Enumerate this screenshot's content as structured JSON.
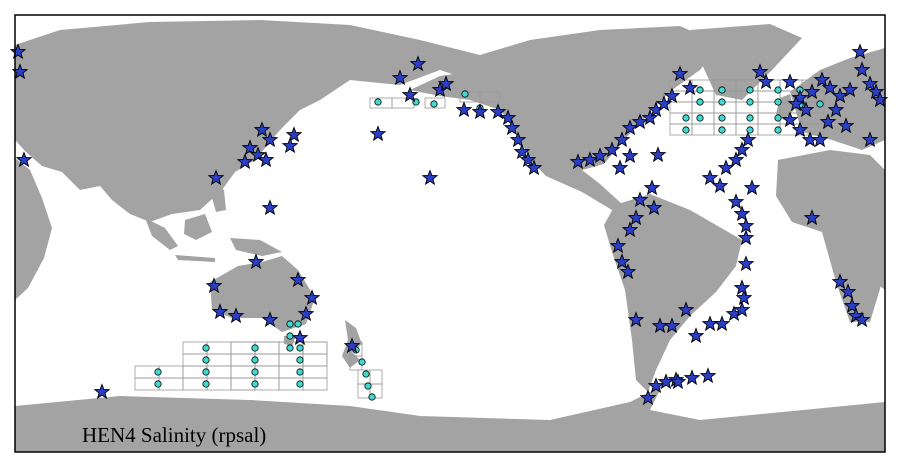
{
  "map": {
    "caption": "HEN4 Salinity (rpsal)"
  }
}
